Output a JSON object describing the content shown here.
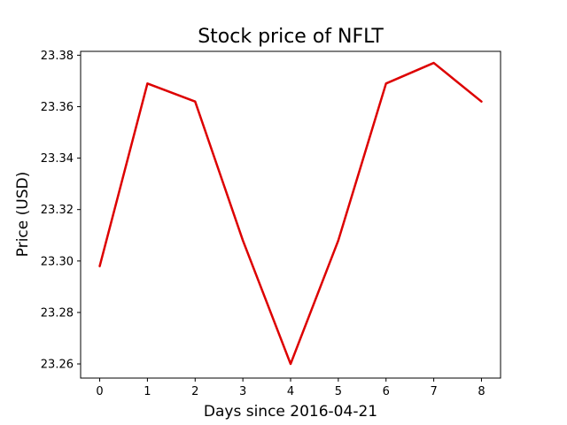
{
  "chart_data": {
    "type": "line",
    "title": "Stock price of NFLT",
    "xlabel": "Days since 2016-04-21",
    "ylabel": "Price (USD)",
    "x": [
      0,
      1,
      2,
      3,
      4,
      5,
      6,
      7,
      8
    ],
    "series": [
      {
        "values": [
          23.298,
          23.369,
          23.362,
          23.308,
          23.26,
          23.308,
          23.369,
          23.377,
          23.362
        ],
        "color": "#dd0000"
      }
    ],
    "x_ticks": [
      "0",
      "1",
      "2",
      "3",
      "4",
      "5",
      "6",
      "7",
      "8"
    ],
    "y_ticks": [
      "23.26",
      "23.28",
      "23.30",
      "23.32",
      "23.34",
      "23.36",
      "23.38"
    ],
    "xlim": [
      -0.4,
      8.4
    ],
    "ylim": [
      23.2545,
      23.3815
    ],
    "grid": false,
    "legend": false
  }
}
